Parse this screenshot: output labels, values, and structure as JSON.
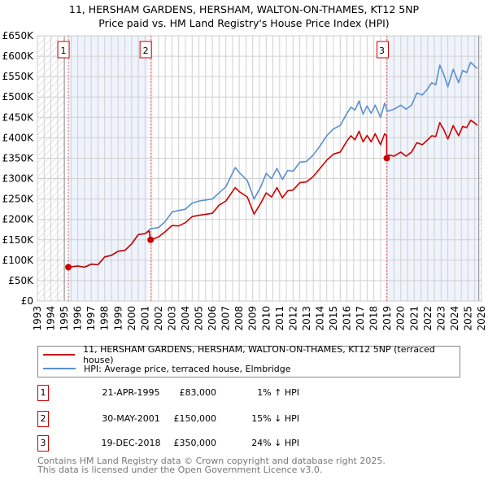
{
  "chart_data": {
    "type": "line",
    "title": "11, HERSHAM GARDENS, HERSHAM, WALTON-ON-THAMES, KT12 5NP",
    "subtitle": "Price paid vs. HM Land Registry's House Price Index (HPI)",
    "xlim": [
      1993,
      2026
    ],
    "ylim": [
      0,
      650
    ],
    "x_ticks": [
      "1993",
      "1994",
      "1995",
      "1996",
      "1997",
      "1998",
      "1999",
      "2000",
      "2001",
      "2002",
      "2003",
      "2004",
      "2005",
      "2006",
      "2007",
      "2008",
      "2009",
      "2010",
      "2011",
      "2012",
      "2013",
      "2014",
      "2015",
      "2016",
      "2017",
      "2018",
      "2019",
      "2020",
      "2021",
      "2022",
      "2023",
      "2024",
      "2025",
      "2026"
    ],
    "y_ticks": [
      {
        "v": 0,
        "label": "£0"
      },
      {
        "v": 50,
        "label": "£50K"
      },
      {
        "v": 100,
        "label": "£100K"
      },
      {
        "v": 150,
        "label": "£150K"
      },
      {
        "v": 200,
        "label": "£200K"
      },
      {
        "v": 250,
        "label": "£250K"
      },
      {
        "v": 300,
        "label": "£300K"
      },
      {
        "v": 350,
        "label": "£350K"
      },
      {
        "v": 400,
        "label": "£400K"
      },
      {
        "v": 450,
        "label": "£450K"
      },
      {
        "v": 500,
        "label": "£500K"
      },
      {
        "v": 550,
        "label": "£550K"
      },
      {
        "v": 600,
        "label": "£600K"
      },
      {
        "v": 650,
        "label": "£650K"
      }
    ],
    "grid": true,
    "series": [
      {
        "name": "11, HERSHAM GARDENS, HERSHAM, WALTON-ON-THAMES, KT12 5NP (terraced house)",
        "color": "#cc0000",
        "points": [
          [
            1995.3,
            83
          ],
          [
            1996,
            86
          ],
          [
            1996.5,
            83
          ],
          [
            1997,
            90
          ],
          [
            1997.5,
            89
          ],
          [
            1998,
            108
          ],
          [
            1998.5,
            112
          ],
          [
            1999,
            122
          ],
          [
            1999.5,
            124
          ],
          [
            2000,
            140
          ],
          [
            2000.5,
            163
          ],
          [
            2001,
            165
          ],
          [
            2001.3,
            172
          ],
          [
            2001.4,
            150
          ],
          [
            2002,
            157
          ],
          [
            2002.5,
            170
          ],
          [
            2003,
            185
          ],
          [
            2003.5,
            184
          ],
          [
            2004,
            192
          ],
          [
            2004.5,
            207
          ],
          [
            2005,
            210
          ],
          [
            2006,
            215
          ],
          [
            2006.5,
            235
          ],
          [
            2007,
            245
          ],
          [
            2007.7,
            278
          ],
          [
            2008,
            268
          ],
          [
            2008.6,
            255
          ],
          [
            2009.1,
            213
          ],
          [
            2009.6,
            240
          ],
          [
            2010,
            265
          ],
          [
            2010.4,
            255
          ],
          [
            2010.8,
            278
          ],
          [
            2011.2,
            253
          ],
          [
            2011.6,
            270
          ],
          [
            2012,
            272
          ],
          [
            2012.5,
            290
          ],
          [
            2013,
            292
          ],
          [
            2013.5,
            305
          ],
          [
            2014,
            325
          ],
          [
            2014.5,
            345
          ],
          [
            2015,
            360
          ],
          [
            2015.5,
            365
          ],
          [
            2016,
            392
          ],
          [
            2016.3,
            405
          ],
          [
            2016.6,
            395
          ],
          [
            2016.9,
            416
          ],
          [
            2017.2,
            390
          ],
          [
            2017.5,
            406
          ],
          [
            2017.8,
            390
          ],
          [
            2018.1,
            410
          ],
          [
            2018.5,
            383
          ],
          [
            2018.8,
            410
          ],
          [
            2018.95,
            405
          ],
          [
            2018.96,
            350
          ],
          [
            2019.1,
            358
          ],
          [
            2019.5,
            355
          ],
          [
            2020,
            365
          ],
          [
            2020.4,
            355
          ],
          [
            2020.8,
            365
          ],
          [
            2021.2,
            388
          ],
          [
            2021.6,
            383
          ],
          [
            2022,
            395
          ],
          [
            2022.3,
            405
          ],
          [
            2022.6,
            403
          ],
          [
            2022.9,
            437
          ],
          [
            2023.2,
            420
          ],
          [
            2023.5,
            397
          ],
          [
            2023.9,
            430
          ],
          [
            2024.3,
            405
          ],
          [
            2024.6,
            428
          ],
          [
            2024.9,
            425
          ],
          [
            2025.2,
            443
          ],
          [
            2025.5,
            436
          ],
          [
            2025.7,
            430
          ]
        ]
      },
      {
        "name": "HPI: Average price, terraced house, Elmbridge",
        "color": "#5b8fd0",
        "points": [
          [
            1995.3,
            83
          ],
          [
            1996,
            85
          ],
          [
            1996.5,
            83
          ],
          [
            1997,
            91
          ],
          [
            1997.5,
            89
          ],
          [
            1998,
            108
          ],
          [
            1998.5,
            112
          ],
          [
            1999,
            122
          ],
          [
            1999.5,
            124
          ],
          [
            2000,
            140
          ],
          [
            2000.5,
            163
          ],
          [
            2001,
            165
          ],
          [
            2001.4,
            177
          ],
          [
            2002,
            180
          ],
          [
            2002.5,
            195
          ],
          [
            2003,
            218
          ],
          [
            2003.5,
            222
          ],
          [
            2004,
            225
          ],
          [
            2004.5,
            240
          ],
          [
            2005,
            245
          ],
          [
            2006,
            250
          ],
          [
            2006.5,
            265
          ],
          [
            2007,
            280
          ],
          [
            2007.7,
            327
          ],
          [
            2008,
            315
          ],
          [
            2008.6,
            295
          ],
          [
            2009.1,
            250
          ],
          [
            2009.6,
            280
          ],
          [
            2010,
            313
          ],
          [
            2010.4,
            300
          ],
          [
            2010.8,
            325
          ],
          [
            2011.2,
            298
          ],
          [
            2011.6,
            320
          ],
          [
            2012,
            318
          ],
          [
            2012.5,
            340
          ],
          [
            2013,
            342
          ],
          [
            2013.5,
            358
          ],
          [
            2014,
            380
          ],
          [
            2014.5,
            405
          ],
          [
            2015,
            422
          ],
          [
            2015.5,
            430
          ],
          [
            2016,
            460
          ],
          [
            2016.3,
            475
          ],
          [
            2016.6,
            468
          ],
          [
            2016.9,
            490
          ],
          [
            2017.2,
            458
          ],
          [
            2017.5,
            478
          ],
          [
            2017.8,
            460
          ],
          [
            2018.1,
            480
          ],
          [
            2018.5,
            450
          ],
          [
            2018.8,
            485
          ],
          [
            2019,
            465
          ],
          [
            2019.5,
            470
          ],
          [
            2020,
            480
          ],
          [
            2020.4,
            470
          ],
          [
            2020.8,
            480
          ],
          [
            2021.2,
            510
          ],
          [
            2021.6,
            505
          ],
          [
            2022,
            520
          ],
          [
            2022.3,
            535
          ],
          [
            2022.6,
            530
          ],
          [
            2022.9,
            578
          ],
          [
            2023.2,
            555
          ],
          [
            2023.5,
            525
          ],
          [
            2023.9,
            568
          ],
          [
            2024.3,
            535
          ],
          [
            2024.6,
            565
          ],
          [
            2024.9,
            560
          ],
          [
            2025.2,
            585
          ],
          [
            2025.5,
            575
          ],
          [
            2025.7,
            570
          ]
        ]
      }
    ],
    "sales": [
      {
        "label": "1",
        "x": 1995.3,
        "y": 83
      },
      {
        "label": "2",
        "x": 2001.41,
        "y": 150
      },
      {
        "label": "3",
        "x": 2018.96,
        "y": 350
      }
    ],
    "shaded_ranges": [
      [
        1995.3,
        2001.2
      ],
      [
        2018.96,
        2025.8
      ]
    ],
    "hatched_ranges": [
      [
        1993,
        1995
      ],
      [
        2025.8,
        2026
      ]
    ]
  },
  "legend": {
    "red": "11, HERSHAM GARDENS, HERSHAM, WALTON-ON-THAMES, KT12 5NP (terraced house)",
    "blue": "HPI: Average price, terraced house, Elmbridge"
  },
  "table": [
    {
      "num": "1",
      "date": "21-APR-1995",
      "price": "£83,000",
      "hpi": "1% ↑ HPI"
    },
    {
      "num": "2",
      "date": "30-MAY-2001",
      "price": "£150,000",
      "hpi": "15% ↓ HPI"
    },
    {
      "num": "3",
      "date": "19-DEC-2018",
      "price": "£350,000",
      "hpi": "24% ↓ HPI"
    }
  ],
  "footer": {
    "line1": "Contains HM Land Registry data © Crown copyright and database right 2025.",
    "line2": "This data is licensed under the Open Government Licence v3.0."
  }
}
